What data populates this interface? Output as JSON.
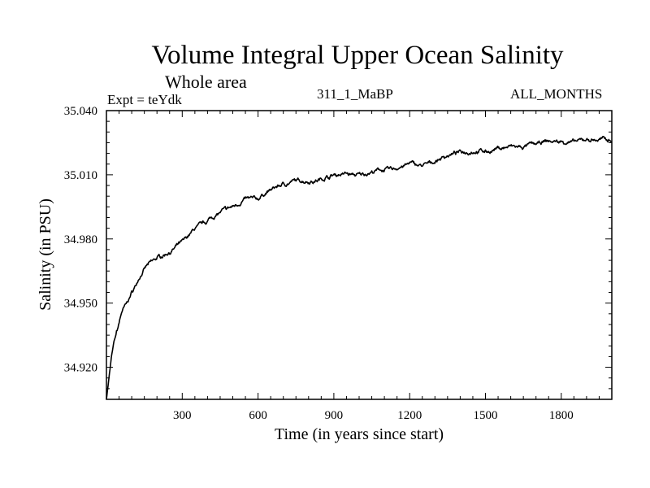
{
  "header": {
    "title": "Volume Integral Upper Ocean Salinity",
    "subtitle": "Whole area",
    "experiment": "Expt = teYdk",
    "run_id": "311_1_MaBP",
    "months": "ALL_MONTHS"
  },
  "chart_data": {
    "type": "line",
    "title": "Volume Integral Upper Ocean Salinity",
    "subtitle": "Whole area",
    "xlabel": "Time (in years since start)",
    "ylabel": "Salinity (in PSU)",
    "xlim": [
      0,
      2000
    ],
    "ylim": [
      34.905,
      35.04
    ],
    "x_ticks": [
      300,
      600,
      900,
      1200,
      1500,
      1800
    ],
    "x_tick_labels": [
      "300",
      "600",
      "900",
      "1200",
      "1500",
      "1800"
    ],
    "y_ticks": [
      34.92,
      34.95,
      34.98,
      35.01,
      35.04
    ],
    "y_tick_labels": [
      "34.920",
      "34.950",
      "34.980",
      "35.010",
      "35.040"
    ],
    "grid": false,
    "series": [
      {
        "name": "Salinity",
        "color": "#000000",
        "x": [
          0,
          10,
          20,
          30,
          45,
          60,
          80,
          100,
          130,
          160,
          200,
          250,
          300,
          350,
          400,
          450,
          500,
          550,
          600,
          650,
          700,
          750,
          800,
          850,
          900,
          950,
          1000,
          1050,
          1100,
          1150,
          1200,
          1250,
          1300,
          1350,
          1400,
          1450,
          1500,
          1550,
          1600,
          1650,
          1700,
          1750,
          1800,
          1850,
          1900,
          1950,
          2000
        ],
        "values": [
          34.905,
          34.915,
          34.925,
          34.932,
          34.938,
          34.946,
          34.95,
          34.955,
          34.962,
          34.967,
          34.971,
          34.974,
          34.978,
          34.985,
          34.989,
          34.993,
          34.995,
          34.999,
          34.999,
          35.003,
          35.006,
          35.007,
          35.007,
          35.008,
          35.01,
          35.011,
          35.01,
          35.011,
          35.012,
          35.013,
          35.015,
          35.014,
          35.016,
          35.019,
          35.02,
          35.021,
          35.021,
          35.022,
          35.023,
          35.022,
          35.024,
          35.025,
          35.025,
          35.025,
          35.026,
          35.026,
          35.027
        ]
      }
    ]
  }
}
